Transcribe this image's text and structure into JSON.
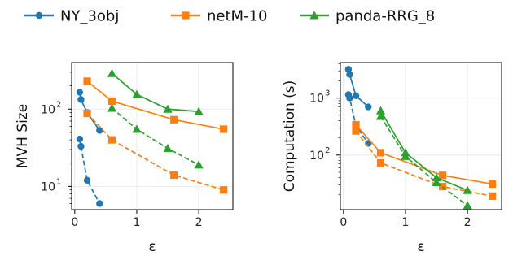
{
  "legend": {
    "entries": [
      {
        "label": "NY_3obj",
        "color": "#1f77b4",
        "marker": "circle"
      },
      {
        "label": "netM-10",
        "color": "#ff7f0e",
        "marker": "square"
      },
      {
        "label": "panda-RRG_8",
        "color": "#2ca02c",
        "marker": "triangle"
      }
    ],
    "placement": "top-center"
  },
  "chart_data": [
    {
      "type": "line",
      "xlabel": "ε",
      "ylabel": "MVH Size",
      "yscale": "log",
      "xlim": [
        -0.05,
        2.55
      ],
      "ylim": [
        5,
        400
      ],
      "xticks": [
        {
          "v": 0,
          "label": "0"
        },
        {
          "v": 1,
          "label": "1"
        },
        {
          "v": 2,
          "label": "2"
        }
      ],
      "yticks": [
        {
          "v": 10,
          "label": "10",
          "exp": "1"
        },
        {
          "v": 100,
          "label": "10",
          "exp": "2"
        }
      ],
      "grid": true,
      "series": [
        {
          "name": "NY_3obj",
          "style": "solid",
          "x": [
            0.08,
            0.1,
            0.2,
            0.4
          ],
          "y": [
            165,
            133,
            90,
            53
          ]
        },
        {
          "name": "NY_3obj",
          "style": "dashed",
          "x": [
            0.08,
            0.1,
            0.2,
            0.4
          ],
          "y": [
            41,
            33,
            12,
            6
          ]
        },
        {
          "name": "netM-10",
          "style": "solid",
          "x": [
            0.2,
            0.6,
            1.6,
            2.4
          ],
          "y": [
            230,
            127,
            73,
            55
          ]
        },
        {
          "name": "netM-10",
          "style": "dashed",
          "x": [
            0.2,
            0.6,
            1.6,
            2.4
          ],
          "y": [
            88,
            40,
            14,
            9
          ]
        },
        {
          "name": "panda-RRG_8",
          "style": "solid",
          "x": [
            0.6,
            1.0,
            1.5,
            2.0
          ],
          "y": [
            290,
            155,
            100,
            93
          ]
        },
        {
          "name": "panda-RRG_8",
          "style": "dashed",
          "x": [
            0.6,
            1.0,
            1.5,
            2.0
          ],
          "y": [
            103,
            55,
            31,
            19
          ]
        }
      ]
    },
    {
      "type": "line",
      "xlabel": "ε",
      "ylabel": "Computation (s)",
      "yscale": "log",
      "xlim": [
        -0.05,
        2.55
      ],
      "ylim": [
        11,
        4200
      ],
      "xticks": [
        {
          "v": 0,
          "label": "0"
        },
        {
          "v": 1,
          "label": "1"
        },
        {
          "v": 2,
          "label": "2"
        }
      ],
      "yticks": [
        {
          "v": 100,
          "label": "10",
          "exp": "2"
        },
        {
          "v": 1000,
          "label": "10",
          "exp": "3"
        }
      ],
      "grid": true,
      "series": [
        {
          "name": "NY_3obj",
          "style": "solid",
          "x": [
            0.08,
            0.1,
            0.2,
            0.4
          ],
          "y": [
            3200,
            2600,
            1100,
            700
          ]
        },
        {
          "name": "NY_3obj",
          "style": "dashed",
          "x": [
            0.08,
            0.1,
            0.2,
            0.4
          ],
          "y": [
            1150,
            1000,
            330,
            160
          ]
        },
        {
          "name": "netM-10",
          "style": "solid",
          "x": [
            0.2,
            0.6,
            1.6,
            2.4
          ],
          "y": [
            340,
            110,
            44,
            31
          ]
        },
        {
          "name": "netM-10",
          "style": "dashed",
          "x": [
            0.2,
            0.6,
            1.6,
            2.4
          ],
          "y": [
            265,
            73,
            28,
            19
          ]
        },
        {
          "name": "panda-RRG_8",
          "style": "solid",
          "x": [
            0.6,
            1.0,
            1.5,
            2.0
          ],
          "y": [
            600,
            110,
            40,
            24
          ]
        },
        {
          "name": "panda-RRG_8",
          "style": "dashed",
          "x": [
            0.6,
            1.0,
            1.5,
            2.0
          ],
          "y": [
            480,
            95,
            33,
            13
          ]
        }
      ]
    }
  ]
}
